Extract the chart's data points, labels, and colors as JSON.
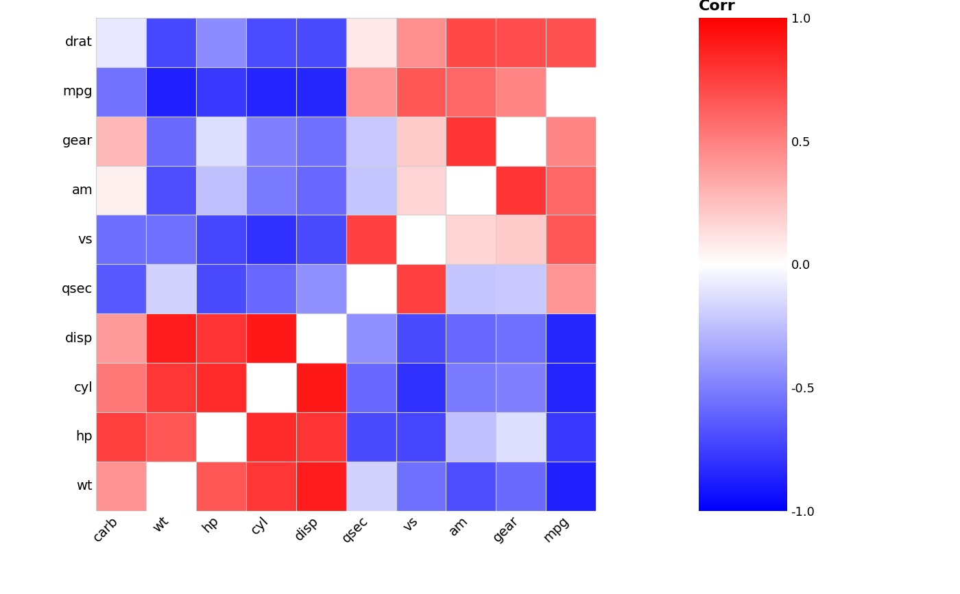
{
  "x_labels": [
    "carb",
    "wt",
    "hp",
    "cyl",
    "disp",
    "qsec",
    "vs",
    "am",
    "gear",
    "mpg"
  ],
  "y_labels": [
    "drat",
    "mpg",
    "gear",
    "am",
    "vs",
    "qsec",
    "disp",
    "cyl",
    "hp",
    "wt"
  ],
  "corr_pairs": [
    [
      "drat",
      "carb",
      -0.09
    ],
    [
      "drat",
      "wt",
      -0.712
    ],
    [
      "drat",
      "hp",
      -0.449
    ],
    [
      "drat",
      "cyl",
      -0.699
    ],
    [
      "drat",
      "disp",
      -0.71
    ],
    [
      "drat",
      "qsec",
      0.091
    ],
    [
      "drat",
      "vs",
      0.44
    ],
    [
      "drat",
      "am",
      0.713
    ],
    [
      "drat",
      "gear",
      0.7
    ],
    [
      "drat",
      "mpg",
      0.681
    ],
    [
      "mpg",
      "carb",
      -0.551
    ],
    [
      "mpg",
      "wt",
      -0.868
    ],
    [
      "mpg",
      "hp",
      -0.776
    ],
    [
      "mpg",
      "cyl",
      -0.852
    ],
    [
      "mpg",
      "disp",
      -0.848
    ],
    [
      "mpg",
      "qsec",
      0.419
    ],
    [
      "mpg",
      "vs",
      0.664
    ],
    [
      "mpg",
      "am",
      0.6
    ],
    [
      "mpg",
      "gear",
      0.48
    ],
    [
      "gear",
      "carb",
      0.274
    ],
    [
      "gear",
      "wt",
      -0.583
    ],
    [
      "gear",
      "hp",
      -0.126
    ],
    [
      "gear",
      "cyl",
      -0.493
    ],
    [
      "gear",
      "disp",
      -0.556
    ],
    [
      "gear",
      "qsec",
      -0.213
    ],
    [
      "gear",
      "vs",
      0.206
    ],
    [
      "gear",
      "am",
      0.794
    ],
    [
      "am",
      "carb",
      0.058
    ],
    [
      "am",
      "wt",
      -0.692
    ],
    [
      "am",
      "hp",
      -0.243
    ],
    [
      "am",
      "cyl",
      -0.523
    ],
    [
      "am",
      "disp",
      -0.591
    ],
    [
      "am",
      "qsec",
      -0.229
    ],
    [
      "am",
      "vs",
      0.168
    ],
    [
      "vs",
      "carb",
      -0.57
    ],
    [
      "vs",
      "wt",
      -0.555
    ],
    [
      "vs",
      "hp",
      -0.723
    ],
    [
      "vs",
      "cyl",
      -0.811
    ],
    [
      "vs",
      "disp",
      -0.71
    ],
    [
      "vs",
      "qsec",
      0.745
    ],
    [
      "qsec",
      "carb",
      -0.656
    ],
    [
      "qsec",
      "wt",
      -0.175
    ],
    [
      "qsec",
      "hp",
      -0.708
    ],
    [
      "qsec",
      "cyl",
      -0.591
    ],
    [
      "qsec",
      "disp",
      -0.434
    ],
    [
      "disp",
      "carb",
      0.395
    ],
    [
      "disp",
      "wt",
      0.888
    ],
    [
      "disp",
      "hp",
      0.791
    ],
    [
      "disp",
      "cyl",
      0.902
    ],
    [
      "cyl",
      "carb",
      0.527
    ],
    [
      "cyl",
      "wt",
      0.782
    ],
    [
      "cyl",
      "hp",
      0.832
    ],
    [
      "hp",
      "carb",
      0.75
    ],
    [
      "hp",
      "wt",
      0.659
    ],
    [
      "wt",
      "carb",
      0.427
    ]
  ],
  "cmap_colors": [
    [
      0.0,
      "#0000ff"
    ],
    [
      0.5,
      "#ffffff"
    ],
    [
      1.0,
      "#ff0000"
    ]
  ],
  "background_color": "#ffffff",
  "empty_cell_facecolor": "#ffffff",
  "cell_edgecolor": "#d0d0d0",
  "cell_linewidth": 0.8,
  "tick_fontsize": 14,
  "legend_title": "Corr",
  "legend_title_fontsize": 16,
  "legend_tick_fontsize": 13,
  "legend_ticks": [
    1.0,
    0.5,
    0.0,
    -0.5,
    -1.0
  ],
  "figsize": [
    14.0,
    8.66
  ],
  "dpi": 100
}
